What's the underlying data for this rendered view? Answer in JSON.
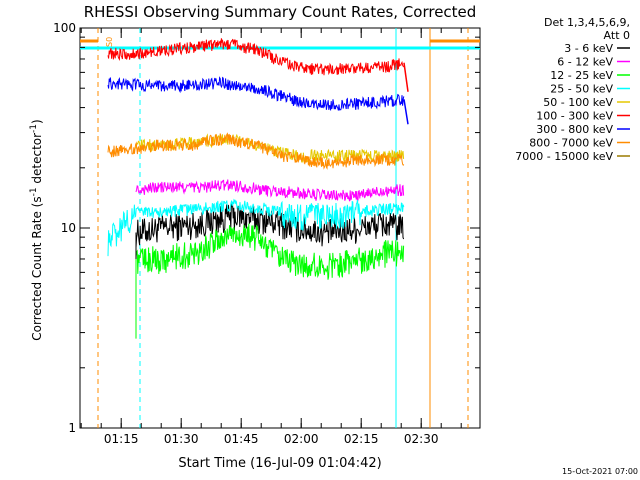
{
  "chart_data": {
    "type": "line",
    "title": "RHESSI Observing Summary Count Rates, Corrected",
    "xlabel": "Start Time (16-Jul-09 01:04:42)",
    "ylabel": "Corrected Count Rate (s",
    "ylabel_sup": "-1",
    "ylabel_tail": " detector",
    "ylabel_end": ")",
    "yscale": "log",
    "ylim": [
      1,
      100
    ],
    "y_ticks": [
      {
        "value": 1,
        "label": "1"
      },
      {
        "value": 10,
        "label": "10"
      },
      {
        "value": 100,
        "label": "100"
      }
    ],
    "xlim_minutes": [
      0,
      100
    ],
    "x_ticks": [
      {
        "minute": 10.3,
        "label": "01:15"
      },
      {
        "minute": 25.3,
        "label": "01:30"
      },
      {
        "minute": 40.3,
        "label": "01:45"
      },
      {
        "minute": 55.3,
        "label": "02:00"
      },
      {
        "minute": 70.3,
        "label": "02:15"
      },
      {
        "minute": 85.3,
        "label": "02:30"
      }
    ],
    "legend_header": [
      "Det 1,3,4,5,6,9,",
      "Att 0"
    ],
    "legend_position": "right",
    "footer": "15-Oct-2021 07:00",
    "marker_label": "S0",
    "series": [
      {
        "name": "3 - 6 keV",
        "color": "#000000",
        "x": [
          14,
          20,
          30,
          38,
          46,
          54,
          62,
          70,
          76,
          81
        ],
        "y": [
          9.5,
          10.0,
          10.5,
          11.5,
          11.0,
          10.0,
          9.5,
          10.0,
          10.5,
          10.0
        ]
      },
      {
        "name": "6 - 12 keV",
        "color": "#ff00ff",
        "x": [
          14,
          20,
          30,
          38,
          46,
          54,
          62,
          70,
          76,
          81
        ],
        "y": [
          15.5,
          16.0,
          16.0,
          16.5,
          15.5,
          15.0,
          14.5,
          14.5,
          15.5,
          15.5
        ]
      },
      {
        "name": "12 - 25 keV",
        "color": "#00ff00",
        "x": [
          14,
          20,
          28,
          34,
          38,
          44,
          50,
          56,
          62,
          70,
          76,
          81
        ],
        "y": [
          7.0,
          7.0,
          7.5,
          8.5,
          9.5,
          9.0,
          7.0,
          6.5,
          6.5,
          7.0,
          7.5,
          7.5
        ]
      },
      {
        "name": "25 - 50 keV",
        "color": "#00ffff",
        "x": [
          7,
          14,
          20,
          30,
          38,
          46,
          54,
          62,
          70,
          76,
          81
        ],
        "y": [
          8.5,
          12.0,
          12.0,
          12.5,
          13.0,
          12.5,
          11.5,
          11.5,
          12.0,
          12.5,
          12.5
        ]
      },
      {
        "name": "50 - 100 keV",
        "color": "#e6c800",
        "x": [
          14,
          20,
          30,
          38,
          46,
          54,
          62,
          70,
          76,
          81
        ],
        "y": [
          26,
          26,
          27,
          28,
          25,
          23,
          23,
          23,
          23,
          23
        ]
      },
      {
        "name": "100 - 300 keV",
        "color": "#ff0000",
        "x": [
          7,
          14,
          20,
          28,
          36,
          44,
          50,
          56,
          62,
          70,
          76,
          81
        ],
        "y": [
          75,
          74,
          77,
          80,
          84,
          78,
          68,
          63,
          62,
          63,
          64,
          67
        ]
      },
      {
        "name": "300 - 800 keV",
        "color": "#0000ff",
        "x": [
          7,
          14,
          20,
          28,
          36,
          44,
          50,
          56,
          62,
          70,
          76,
          81
        ],
        "y": [
          53,
          52,
          51,
          52,
          53,
          50,
          46,
          42,
          41,
          42,
          43,
          44
        ]
      },
      {
        "name": "800 - 7000 keV",
        "color": "#ff8c00",
        "x": [
          7,
          14,
          20,
          28,
          36,
          44,
          50,
          56,
          62,
          70,
          76,
          81
        ],
        "y": [
          24,
          25,
          26,
          26,
          28,
          26,
          23,
          22,
          21,
          22,
          22,
          22
        ]
      },
      {
        "name": "7000 - 15000 keV",
        "color": "#9b7a00",
        "x": [],
        "y": []
      }
    ],
    "reference_lines": [
      {
        "color": "#ff8c00",
        "style": "dashed",
        "minute": 4.5
      },
      {
        "color": "#00ffff",
        "style": "dashed",
        "minute": 15.0
      },
      {
        "color": "#00ffff",
        "style": "solid",
        "minute": 79.0
      },
      {
        "color": "#ff8c00",
        "style": "solid",
        "minute": 87.5
      },
      {
        "color": "#ff8c00",
        "style": "dashed",
        "minute": 97.0
      }
    ],
    "grid": false
  }
}
